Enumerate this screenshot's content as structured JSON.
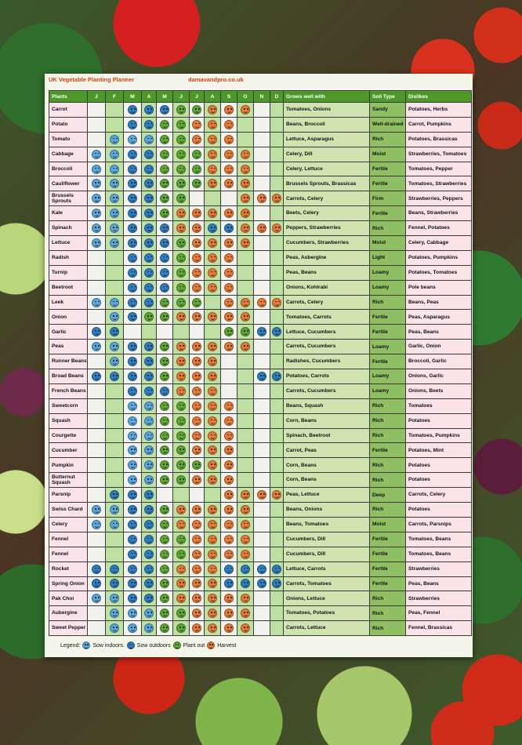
{
  "title": "UK Vegetable Planting Planner",
  "site": "damavandpro.co.uk",
  "headers": {
    "plants": "Plants",
    "months": [
      "J",
      "F",
      "M",
      "A",
      "M",
      "J",
      "J",
      "A",
      "S",
      "O",
      "N",
      "D"
    ],
    "grows": "Grows well with",
    "soil": "Soil Type",
    "dislikes": "Dislikes"
  },
  "icon_legend_colors": {
    "sow_indoors": "#5aa7dd",
    "sow_outdoors": "#2e7ec4",
    "plant_out": "#5ea831",
    "harvest": "#e77b35"
  },
  "legend": {
    "label": "Legend:",
    "sow_indoors": "Sow indoors.",
    "sow_outdoors": "Sow outdoors",
    "plant_out": "Plant out",
    "harvest": "Harvest"
  },
  "rows": [
    {
      "plant": "Carrot",
      "cal": [
        "",
        "",
        "so",
        "so",
        "so",
        "po",
        "po",
        "hv",
        "hv",
        "hv",
        "",
        ""
      ],
      "grows": "Tomatoes, Onions",
      "soil": "Sandy",
      "dislikes": "Potatoes, Herbs"
    },
    {
      "plant": "Potato",
      "cal": [
        "",
        "",
        "so",
        "so",
        "po",
        "po",
        "hv",
        "hv",
        "hv",
        "",
        "",
        ""
      ],
      "grows": "Beans, Broccoli",
      "soil": "Well-drained",
      "dislikes": "Carrot, Pumpkins"
    },
    {
      "plant": "Tomato",
      "cal": [
        "",
        "si",
        "si",
        "si",
        "po",
        "po",
        "hv",
        "hv",
        "hv",
        "",
        "",
        ""
      ],
      "grows": "Lettuce, Asparagus",
      "soil": "Rich",
      "dislikes": "Potatoes, Brassicas"
    },
    {
      "plant": "Cabbage",
      "cal": [
        "si",
        "si",
        "so",
        "so",
        "po",
        "po",
        "po",
        "hv",
        "hv",
        "hv",
        "",
        ""
      ],
      "grows": "Celery, Dill",
      "soil": "Moist",
      "dislikes": "Strawberries, Tomatoes"
    },
    {
      "plant": "Broccoli",
      "cal": [
        "si",
        "si",
        "so",
        "so",
        "po",
        "po",
        "po",
        "hv",
        "hv",
        "hv",
        "",
        ""
      ],
      "grows": "Celery, Lettuce",
      "soil": "Fertile",
      "dislikes": "Tomatoes, Pepper"
    },
    {
      "plant": "Cauliflower",
      "cal": [
        "si",
        "si",
        "so",
        "so",
        "po",
        "po",
        "po",
        "hv",
        "hv",
        "hv",
        "",
        ""
      ],
      "grows": "Brussels Sprouts, Brassicas",
      "soil": "Fertile",
      "dislikes": "Tomatoes, Strawberries"
    },
    {
      "plant": "Brussels Sprouts",
      "cal": [
        "si",
        "si",
        "so",
        "so",
        "po",
        "po",
        "",
        "",
        "",
        "hv",
        "hv",
        "hv"
      ],
      "grows": "Carrots, Celery",
      "soil": "Firm",
      "dislikes": "Strawberries, Peppers"
    },
    {
      "plant": "Kale",
      "cal": [
        "si",
        "si",
        "so",
        "so",
        "po",
        "hv",
        "hv",
        "hv",
        "hv",
        "hv",
        "",
        ""
      ],
      "grows": "Beets, Celery",
      "soil": "Fertile",
      "dislikes": "Beans, Strawberries"
    },
    {
      "plant": "Spinach",
      "cal": [
        "si",
        "si",
        "so",
        "so",
        "so",
        "hv",
        "hv",
        "so",
        "so",
        "hv",
        "hv",
        "hv"
      ],
      "grows": "Peppers, Strawberries",
      "soil": "Rich",
      "dislikes": "Fennel, Potatoes"
    },
    {
      "plant": "Lettuce",
      "cal": [
        "si",
        "si",
        "so",
        "so",
        "so",
        "po",
        "hv",
        "hv",
        "hv",
        "hv",
        "",
        ""
      ],
      "grows": "Cucumbers, Strawberries",
      "soil": "Moist",
      "dislikes": "Celery, Cabbage"
    },
    {
      "plant": "Radish",
      "cal": [
        "",
        "",
        "so",
        "so",
        "so",
        "po",
        "hv",
        "hv",
        "hv",
        "",
        "",
        ""
      ],
      "grows": "Peas, Aubergine",
      "soil": "Light",
      "dislikes": "Potatoes, Pumpkins"
    },
    {
      "plant": "Turnip",
      "cal": [
        "",
        "",
        "so",
        "so",
        "so",
        "po",
        "hv",
        "hv",
        "hv",
        "",
        "",
        ""
      ],
      "grows": "Peas, Beans",
      "soil": "Loamy",
      "dislikes": "Potatoes, Tomatoes"
    },
    {
      "plant": "Beetroot",
      "cal": [
        "",
        "",
        "so",
        "so",
        "so",
        "po",
        "hv",
        "hv",
        "hv",
        "",
        "",
        ""
      ],
      "grows": "Onions, Kohlrabi",
      "soil": "Loamy",
      "dislikes": "Pole beans"
    },
    {
      "plant": "Leek",
      "cal": [
        "si",
        "si",
        "so",
        "so",
        "po",
        "po",
        "po",
        "",
        "hv",
        "hv",
        "hv",
        "hv"
      ],
      "grows": "Carrots, Celery",
      "soil": "Rich",
      "dislikes": "Beans, Peas"
    },
    {
      "plant": "Onion",
      "cal": [
        "",
        "si",
        "so",
        "po",
        "po",
        "hv",
        "hv",
        "hv",
        "hv",
        "hv",
        "",
        ""
      ],
      "grows": "Tomatoes, Carrots",
      "soil": "Fertile",
      "dislikes": "Peas, Asparagus"
    },
    {
      "plant": "Garlic",
      "cal": [
        "so",
        "so",
        "",
        "",
        "",
        "",
        "",
        "",
        "po",
        "po",
        "so",
        "so"
      ],
      "grows": "Lettuce, Cucumbers",
      "soil": "Fertile",
      "dislikes": "Peas, Beans"
    },
    {
      "plant": "Peas",
      "cal": [
        "si",
        "si",
        "so",
        "so",
        "po",
        "hv",
        "hv",
        "hv",
        "hv",
        "hv",
        "",
        ""
      ],
      "grows": "Carrots, Cucumbers",
      "soil": "Loamy",
      "dislikes": "Garlic, Onion"
    },
    {
      "plant": "Runner Beans",
      "cal": [
        "",
        "si",
        "so",
        "so",
        "po",
        "hv",
        "hv",
        "hv",
        "",
        "",
        "",
        ""
      ],
      "grows": "Radishes, Cucumbers",
      "soil": "Fertile",
      "dislikes": "Broccoli, Garlic"
    },
    {
      "plant": "Broad Beans",
      "cal": [
        "so",
        "so",
        "so",
        "so",
        "po",
        "hv",
        "hv",
        "hv",
        "",
        "",
        "so",
        "so"
      ],
      "grows": "Potatoes, Carrots",
      "soil": "Loamy",
      "dislikes": "Onions, Garlic"
    },
    {
      "plant": "French Beans",
      "cal": [
        "",
        "",
        "so",
        "so",
        "so",
        "hv",
        "hv",
        "hv",
        "",
        "",
        "",
        ""
      ],
      "grows": "Carrots, Cucumbers",
      "soil": "Loamy",
      "dislikes": "Onions, Beets"
    },
    {
      "plant": "Sweetcorn",
      "cal": [
        "",
        "",
        "si",
        "si",
        "po",
        "po",
        "hv",
        "hv",
        "hv",
        "",
        "",
        ""
      ],
      "grows": "Beans, Squash",
      "soil": "Rich",
      "dislikes": "Tomatoes"
    },
    {
      "plant": "Squash",
      "cal": [
        "",
        "",
        "si",
        "si",
        "po",
        "po",
        "hv",
        "hv",
        "hv",
        "",
        "",
        ""
      ],
      "grows": "Corn, Beans",
      "soil": "Rich",
      "dislikes": "Potatoes"
    },
    {
      "plant": "Courgette",
      "cal": [
        "",
        "",
        "si",
        "si",
        "po",
        "po",
        "hv",
        "hv",
        "hv",
        "",
        "",
        ""
      ],
      "grows": "Spinach, Beetroot",
      "soil": "Rich",
      "dislikes": "Tomatoes, Pumpkins"
    },
    {
      "plant": "Cucumber",
      "cal": [
        "",
        "",
        "si",
        "si",
        "po",
        "po",
        "hv",
        "hv",
        "hv",
        "",
        "",
        ""
      ],
      "grows": "Carrot, Peas",
      "soil": "Fertile",
      "dislikes": "Potatoes, Mint"
    },
    {
      "plant": "Pumpkin",
      "cal": [
        "",
        "",
        "si",
        "si",
        "po",
        "po",
        "po",
        "hv",
        "hv",
        "",
        "",
        ""
      ],
      "grows": "Corn, Beans",
      "soil": "Rich",
      "dislikes": "Potatoes"
    },
    {
      "plant": "Butternut Squash",
      "cal": [
        "",
        "",
        "si",
        "si",
        "po",
        "po",
        "hv",
        "hv",
        "hv",
        "",
        "",
        ""
      ],
      "grows": "Corn, Beans",
      "soil": "Rich",
      "dislikes": "Potatoes"
    },
    {
      "plant": "Parsnip",
      "cal": [
        "",
        "so",
        "so",
        "so",
        "",
        "",
        "",
        "",
        "hv",
        "hv",
        "hv",
        "hv"
      ],
      "grows": "Peas, Lettuce",
      "soil": "Deep",
      "dislikes": "Carrots, Celery"
    },
    {
      "plant": "Swiss Chard",
      "cal": [
        "si",
        "si",
        "so",
        "so",
        "po",
        "hv",
        "hv",
        "hv",
        "hv",
        "hv",
        "",
        ""
      ],
      "grows": "Beans, Onions",
      "soil": "Rich",
      "dislikes": "Potatoes"
    },
    {
      "plant": "Celery",
      "cal": [
        "si",
        "si",
        "so",
        "so",
        "po",
        "hv",
        "hv",
        "hv",
        "hv",
        "hv",
        "",
        ""
      ],
      "grows": "Beans, Tomatoes",
      "soil": "Moist",
      "dislikes": "Carrots, Parsnips"
    },
    {
      "plant": "Fennel",
      "cal": [
        "",
        "",
        "so",
        "so",
        "po",
        "po",
        "hv",
        "hv",
        "hv",
        "hv",
        "",
        ""
      ],
      "grows": "Cucumbers, Dill",
      "soil": "Fertile",
      "dislikes": "Tomatoes, Beans"
    },
    {
      "plant": "Fennel",
      "cal": [
        "",
        "",
        "so",
        "so",
        "po",
        "po",
        "hv",
        "hv",
        "hv",
        "hv",
        "",
        ""
      ],
      "grows": "Cucumbers, Dill",
      "soil": "Fertile",
      "dislikes": "Tomatoes, Beans"
    },
    {
      "plant": "Rocket",
      "cal": [
        "so",
        "so",
        "so",
        "so",
        "po",
        "hv",
        "hv",
        "hv",
        "so",
        "so",
        "so",
        "so"
      ],
      "grows": "Lettuce, Carrots",
      "soil": "Fertile",
      "dislikes": "Strawberries"
    },
    {
      "plant": "Spring Onion",
      "cal": [
        "so",
        "so",
        "so",
        "so",
        "po",
        "hv",
        "hv",
        "hv",
        "so",
        "so",
        "so",
        "so"
      ],
      "grows": "Carrots, Tomatoes",
      "soil": "Fertile",
      "dislikes": "Peas, Beans"
    },
    {
      "plant": "Pak Choi",
      "cal": [
        "si",
        "si",
        "so",
        "so",
        "po",
        "hv",
        "hv",
        "hv",
        "hv",
        "hv",
        "",
        ""
      ],
      "grows": "Onions, Lettuce",
      "soil": "Rich",
      "dislikes": "Strawberries"
    },
    {
      "plant": "Aubergine",
      "cal": [
        "",
        "si",
        "si",
        "si",
        "po",
        "po",
        "hv",
        "hv",
        "hv",
        "hv",
        "",
        ""
      ],
      "grows": "Tomatoes, Potatoes",
      "soil": "Rich",
      "dislikes": "Peas, Fennel"
    },
    {
      "plant": "Sweet Pepper",
      "cal": [
        "",
        "si",
        "si",
        "si",
        "po",
        "po",
        "hv",
        "hv",
        "hv",
        "hv",
        "",
        ""
      ],
      "grows": "Carrots, Lettuce",
      "soil": "Rich",
      "dislikes": "Fennel, Brassicas"
    }
  ]
}
